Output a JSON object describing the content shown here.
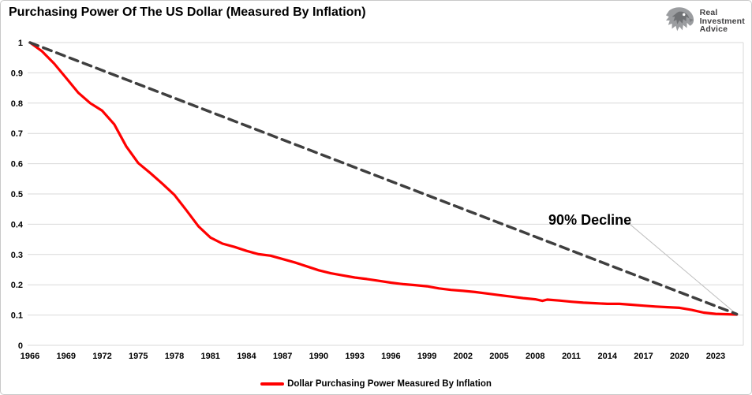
{
  "header": {
    "title": "Purchasing Power Of The US Dollar (Measured By Inflation)"
  },
  "logo": {
    "lines": [
      "Real",
      "Investment",
      "Advice"
    ]
  },
  "legend": {
    "label": "Dollar Purchasing Power Measured By Inflation"
  },
  "colors": {
    "series_red": "#FF0000",
    "trend_gray": "#3F3F3F",
    "grid": "#D9D9D9",
    "leader": "#BFBFBF",
    "logo_text": "#414042",
    "frame_border": "#C9C9C9",
    "text": "#000000"
  },
  "chart_data": {
    "type": "line",
    "title": "Purchasing Power Of The US Dollar (Measured By Inflation)",
    "xlabel": "",
    "ylabel": "",
    "xlim": [
      1965.8,
      2025.3
    ],
    "ylim": [
      0,
      1
    ],
    "grid": "horizontal",
    "legend_position": "bottom-center",
    "x_ticks": [
      1966,
      1969,
      1972,
      1975,
      1978,
      1981,
      1984,
      1987,
      1990,
      1993,
      1996,
      1999,
      2002,
      2005,
      2008,
      2011,
      2014,
      2017,
      2020,
      2023
    ],
    "y_tick_values": [
      0,
      0.1,
      0.2,
      0.3,
      0.4,
      0.5,
      0.6,
      0.7,
      0.8,
      0.9,
      1
    ],
    "y_tick_labels": [
      "0",
      "0.1",
      "0.2",
      "0.3",
      "0.4",
      "0.5",
      "0.6",
      "0.7",
      "0.8",
      "0.9",
      "1"
    ],
    "series": [
      {
        "id": "dollar-purchasing-power",
        "name": "Dollar Purchasing Power Measured By Inflation",
        "color": "#FF0000",
        "style": "solid",
        "width": 3.2,
        "x": [
          1966,
          1967,
          1968,
          1969,
          1970,
          1971,
          1972,
          1973,
          1974,
          1975,
          1976,
          1977,
          1978,
          1979,
          1980,
          1981,
          1982,
          1983,
          1984,
          1985,
          1986,
          1987,
          1988,
          1989,
          1990,
          1991,
          1992,
          1993,
          1994,
          1995,
          1996,
          1997,
          1998,
          1999,
          2000,
          2001,
          2002,
          2003,
          2004,
          2005,
          2006,
          2007,
          2008,
          2008.6,
          2009,
          2010,
          2011,
          2012,
          2013,
          2014,
          2015,
          2016,
          2017,
          2018,
          2019,
          2020,
          2021,
          2022,
          2023,
          2024,
          2024.75
        ],
        "values": [
          1.0,
          0.971,
          0.931,
          0.883,
          0.835,
          0.8,
          0.775,
          0.73,
          0.657,
          0.602,
          0.569,
          0.534,
          0.497,
          0.446,
          0.393,
          0.356,
          0.336,
          0.325,
          0.312,
          0.301,
          0.296,
          0.285,
          0.274,
          0.261,
          0.248,
          0.238,
          0.231,
          0.224,
          0.219,
          0.213,
          0.207,
          0.202,
          0.199,
          0.195,
          0.188,
          0.183,
          0.18,
          0.176,
          0.171,
          0.166,
          0.161,
          0.156,
          0.152,
          0.147,
          0.151,
          0.148,
          0.144,
          0.141,
          0.139,
          0.137,
          0.137,
          0.134,
          0.131,
          0.128,
          0.126,
          0.124,
          0.117,
          0.108,
          0.104,
          0.1025,
          0.1015
        ]
      },
      {
        "id": "90-percent-decline-trend",
        "name": "90% Decline Trend",
        "color": "#3F3F3F",
        "style": "dashed",
        "width": 3.5,
        "x": [
          1966,
          2024.75
        ],
        "values": [
          1.0,
          0.103
        ]
      }
    ],
    "annotation": {
      "text": "90% Decline",
      "x": 2009.1,
      "y": 0.44,
      "leader": {
        "x1": 2015.6,
        "y1": 0.409,
        "x2": 2024.7,
        "y2": 0.104
      }
    }
  }
}
